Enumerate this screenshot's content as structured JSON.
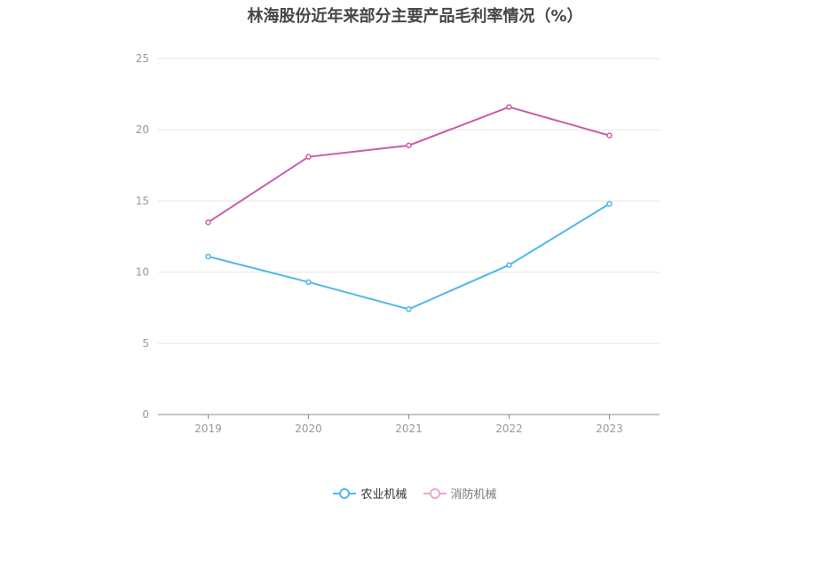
{
  "chart_data": {
    "type": "line",
    "title": "林海股份近年来部分主要产品毛利率情况（%）",
    "xlabel": "",
    "ylabel": "",
    "categories": [
      "2019",
      "2020",
      "2021",
      "2022",
      "2023"
    ],
    "ylim": [
      0,
      25
    ],
    "yticks": [
      0,
      5,
      10,
      15,
      20,
      25
    ],
    "grid": true,
    "legend_position": "bottom",
    "series": [
      {
        "name": "农业机械",
        "color": "#4fb8ea",
        "values": [
          11.1,
          9.3,
          7.4,
          10.5,
          14.8
        ]
      },
      {
        "name": "消防机械",
        "color": "#cc5ca8",
        "values": [
          13.5,
          18.1,
          18.9,
          21.6,
          19.6
        ]
      }
    ]
  },
  "legend": {
    "items": [
      {
        "label": "农业机械",
        "color": "#4fb8ea"
      },
      {
        "label": "消防机械",
        "color": "#e8a8cf"
      }
    ]
  }
}
